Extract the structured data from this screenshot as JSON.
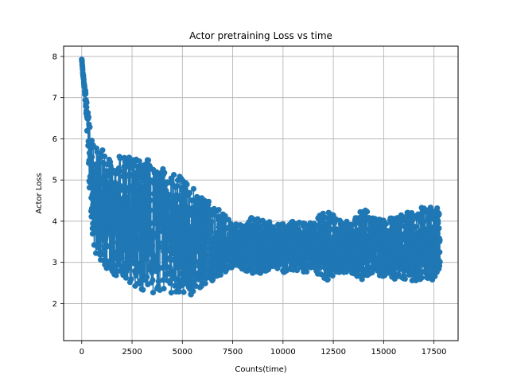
{
  "chart_data": {
    "type": "line",
    "title": "Actor pretraining Loss vs time",
    "xlabel": "Counts(time)",
    "ylabel": "Actor Loss",
    "xlim": [
      -900,
      18700
    ],
    "ylim": [
      1.1,
      8.25
    ],
    "grid": true,
    "marker": "circle",
    "color": "#1f77b4",
    "x_ticks": [
      0,
      2500,
      5000,
      7500,
      10000,
      12500,
      15000,
      17500
    ],
    "x_tick_labels": [
      "0",
      "2500",
      "5000",
      "7500",
      "10000",
      "12500",
      "15000",
      "17500"
    ],
    "y_ticks": [
      2,
      3,
      4,
      5,
      6,
      7,
      8
    ],
    "y_tick_labels": [
      "2",
      "3",
      "4",
      "5",
      "6",
      "7",
      "8"
    ],
    "series": [
      {
        "x": [
          0,
          30,
          60,
          90,
          120,
          150,
          200,
          250,
          300,
          350,
          400,
          450,
          500,
          600,
          700,
          800,
          900,
          1000,
          1100,
          1200,
          1400,
          1600,
          1800,
          2000,
          2200,
          2500,
          2800,
          3000,
          3300,
          3600,
          3800,
          4000,
          4300,
          4600,
          4900,
          5200,
          5400,
          5700,
          6000,
          6300,
          6600,
          6900,
          7100,
          7500,
          8000,
          8500,
          9000,
          9500,
          10000,
          10500,
          11000,
          11500,
          12000,
          12500,
          13000,
          13500,
          14000,
          14500,
          15000,
          15500,
          16000,
          16500,
          17000,
          17500,
          17800
        ],
        "y": [
          7.92,
          7.75,
          7.6,
          7.45,
          7.3,
          7.15,
          6.95,
          6.7,
          6.3,
          5.9,
          5.5,
          5.2,
          4.9,
          4.6,
          4.5,
          4.45,
          4.4,
          4.35,
          4.3,
          4.3,
          4.25,
          4.2,
          4.15,
          4.1,
          4.05,
          4.0,
          3.95,
          3.9,
          3.9,
          3.85,
          3.85,
          3.8,
          3.75,
          3.7,
          3.65,
          3.6,
          3.55,
          3.5,
          3.5,
          3.5,
          3.45,
          3.45,
          3.45,
          3.4,
          3.4,
          3.4,
          3.4,
          3.4,
          3.35,
          3.4,
          3.35,
          3.4,
          3.45,
          3.4,
          3.35,
          3.4,
          3.45,
          3.4,
          3.35,
          3.35,
          3.4,
          3.4,
          3.5,
          3.45,
          3.45
        ],
        "spread": [
          0.05,
          0.05,
          0.05,
          0.05,
          0.05,
          0.1,
          0.2,
          0.3,
          0.5,
          0.7,
          0.9,
          1.0,
          1.1,
          1.2,
          1.3,
          1.35,
          1.4,
          1.4,
          1.45,
          1.45,
          1.5,
          1.5,
          1.5,
          1.55,
          1.55,
          1.6,
          1.6,
          1.6,
          1.6,
          1.6,
          1.55,
          1.5,
          1.5,
          1.45,
          1.45,
          1.4,
          1.35,
          1.2,
          1.1,
          1.0,
          0.9,
          0.8,
          0.75,
          0.5,
          0.6,
          0.7,
          0.65,
          0.55,
          0.6,
          0.6,
          0.6,
          0.6,
          0.9,
          0.8,
          0.6,
          0.7,
          0.9,
          0.7,
          0.7,
          0.8,
          0.8,
          0.85,
          0.9,
          0.9,
          0.85
        ]
      }
    ]
  }
}
